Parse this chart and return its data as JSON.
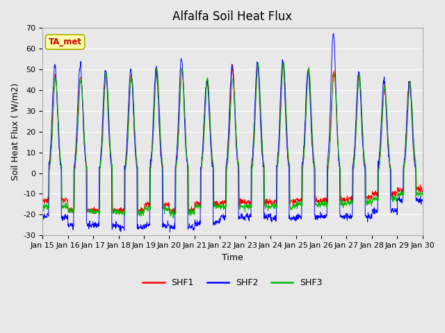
{
  "title": "Alfalfa Soil Heat Flux",
  "ylabel": "Soil Heat Flux ( W/m2)",
  "xlabel": "Time",
  "xlim": [
    0,
    15
  ],
  "ylim": [
    -30,
    70
  ],
  "yticks": [
    -30,
    -20,
    -10,
    0,
    10,
    20,
    30,
    40,
    50,
    60,
    70
  ],
  "xtick_labels": [
    "Jan 15",
    "Jan 16",
    "Jan 17",
    "Jan 18",
    "Jan 19",
    "Jan 20",
    "Jan 21",
    "Jan 22",
    "Jan 23",
    "Jan 24",
    "Jan 25",
    "Jan 26",
    "Jan 27",
    "Jan 28",
    "Jan 29",
    "Jan 30"
  ],
  "shf1_color": "#FF0000",
  "shf2_color": "#0000FF",
  "shf3_color": "#00BB00",
  "line_width": 0.7,
  "background_color": "#E8E8E8",
  "annotation_text": "TA_met",
  "annotation_color": "#CC0000",
  "annotation_bg": "#FFFFAA",
  "annotation_border": "#AAAA00",
  "legend_labels": [
    "SHF1",
    "SHF2",
    "SHF3"
  ],
  "legend_colors": [
    "#FF0000",
    "#0000FF",
    "#00BB00"
  ]
}
